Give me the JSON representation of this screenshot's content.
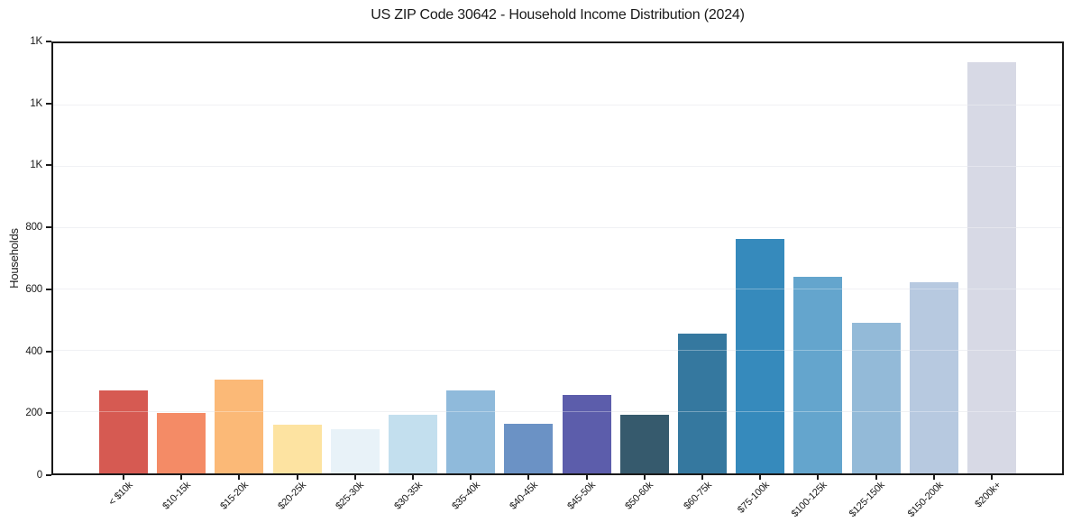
{
  "chart_data": {
    "type": "bar",
    "title": "US ZIP Code 30642 - Household Income Distribution (2024)",
    "xlabel": "",
    "ylabel": "Households",
    "categories": [
      "< $10k",
      "$10-15k",
      "$15-20k",
      "$20-25k",
      "$25-30k",
      "$30-35k",
      "$35-40k",
      "$40-45k",
      "$45-50k",
      "$50-60k",
      "$60-75k",
      "$75-100k",
      "$100-125k",
      "$125-150k",
      "$150-200k",
      "$200k+"
    ],
    "values": [
      270,
      197,
      306,
      159,
      145,
      192,
      270,
      161,
      254,
      192,
      454,
      762,
      641,
      490,
      622,
      1337
    ],
    "bar_colors": [
      "#d65a52",
      "#f48b66",
      "#fbb977",
      "#fde3a1",
      "#e8f2f8",
      "#c3dfee",
      "#8fbadb",
      "#6b92c5",
      "#5c5dab",
      "#365a6d",
      "#35789f",
      "#368abc",
      "#64a5cd",
      "#93bad8",
      "#b7c9e0",
      "#d7d9e5"
    ],
    "ylim": [
      0,
      1400
    ],
    "yticks": {
      "values": [
        0,
        200,
        400,
        600,
        800,
        1000,
        1200,
        1400
      ],
      "labels": [
        "0",
        "200",
        "400",
        "600",
        "800",
        "1K",
        "1K",
        "1K"
      ]
    },
    "x_tick_rotation_deg": 45,
    "grid": "horizontal",
    "legend": "none"
  },
  "colors": {
    "background": "#ffffff",
    "spine": "#1a1a1a",
    "grid": "#e9eaef",
    "text": "#1a1a1a"
  }
}
